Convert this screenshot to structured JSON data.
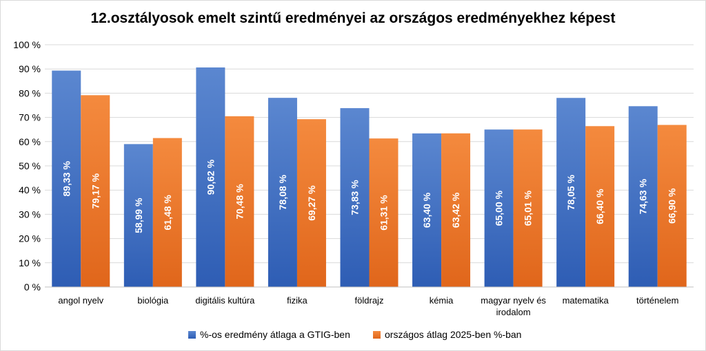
{
  "chart_data": {
    "type": "bar",
    "title": "12.osztályosok emelt szintű eredményei az országos eredményekhez képest",
    "xlabel": "",
    "ylabel": "",
    "ylim": [
      0,
      100
    ],
    "yticks": [
      "0 %",
      "10 %",
      "20 %",
      "30 %",
      "40 %",
      "50 %",
      "60 %",
      "70 %",
      "80 %",
      "90 %",
      "100 %"
    ],
    "categories": [
      [
        "angol nyelv"
      ],
      [
        "biológia"
      ],
      [
        "digitális kultúra"
      ],
      [
        "fizika"
      ],
      [
        "földrajz"
      ],
      [
        "kémia"
      ],
      [
        "magyar nyelv és",
        "irodalom"
      ],
      [
        "matematika"
      ],
      [
        "történelem"
      ]
    ],
    "series": [
      {
        "name": "%-os eredmény átlaga a GTIG-ben",
        "color": "#4472c4",
        "values": [
          89.33,
          58.99,
          90.62,
          78.08,
          73.83,
          63.4,
          65.0,
          78.05,
          74.63
        ],
        "labels": [
          "89,33 %",
          "58,99 %",
          "90,62 %",
          "78,08 %",
          "73,83 %",
          "63,40 %",
          "65,00 %",
          "78,05 %",
          "74,63 %"
        ]
      },
      {
        "name": "országos átlag 2025-ben %-ban",
        "color": "#ed7d31",
        "values": [
          79.17,
          61.48,
          70.48,
          69.27,
          61.31,
          63.42,
          65.01,
          66.4,
          66.9
        ],
        "labels": [
          "79,17 %",
          "61,48 %",
          "70,48 %",
          "69,27 %",
          "61,31 %",
          "63,42 %",
          "65,01 %",
          "66,40 %",
          "66,90 %"
        ]
      }
    ],
    "grid": true,
    "legend_position": "bottom"
  }
}
